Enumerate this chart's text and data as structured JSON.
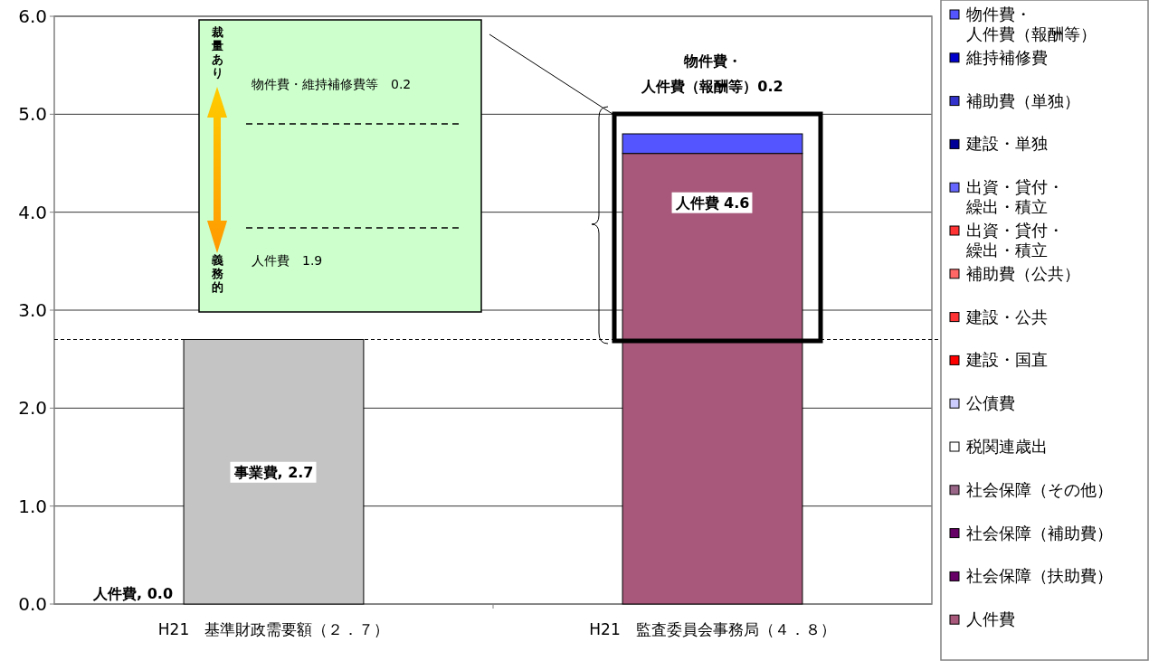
{
  "chart_data": {
    "type": "bar",
    "stacked": true,
    "categories": [
      "H21　基準財政需要額（２．７）",
      "H21　監査委員会事務局（４．８）"
    ],
    "series": [
      {
        "name": "人件費",
        "color": "#a8587a",
        "values": [
          0.0,
          4.6
        ],
        "value_labels": [
          null,
          "人件費 4.6"
        ]
      },
      {
        "color": "#c4c4c4",
        "values": [
          2.7,
          null
        ],
        "value_labels": [
          "事業費, 2.7",
          null
        ]
      },
      {
        "name": "社会保障（扶助費）",
        "color": "#660066",
        "values": [
          null,
          null
        ]
      },
      {
        "name": "社会保障（補助費）",
        "color": "#660066",
        "values": [
          null,
          null
        ]
      },
      {
        "name": "社会保障（その他）",
        "color": "#996688",
        "values": [
          null,
          null
        ]
      },
      {
        "name": "税関連歳出",
        "color": "#ffffff",
        "values": [
          null,
          null
        ]
      },
      {
        "name": "公債費",
        "color": "#ccccff",
        "values": [
          null,
          null
        ]
      },
      {
        "name": "建設・国直",
        "color": "#ff0000",
        "values": [
          null,
          null
        ]
      },
      {
        "name": "建設・公共",
        "color": "#ff3333",
        "values": [
          null,
          null
        ]
      },
      {
        "name": "補助費（公共）",
        "color": "#ff6666",
        "values": [
          null,
          null
        ]
      },
      {
        "name": "出資・貸付・繰出・積立",
        "color": "#ff3333",
        "values": [
          null,
          null
        ]
      },
      {
        "name": "出資・貸付・繰出・積立",
        "color": "#6666ff",
        "values": [
          null,
          null
        ]
      },
      {
        "name": "建設・単独",
        "color": "#000099",
        "values": [
          null,
          null
        ]
      },
      {
        "name": "補助費（単独）",
        "color": "#3333cc",
        "values": [
          null,
          null
        ]
      },
      {
        "name": "維持補修費",
        "color": "#0000cc",
        "values": [
          null,
          null
        ]
      },
      {
        "name": "物件費・人件費（報酬等）",
        "color": "#5555ff",
        "values": [
          null,
          0.2
        ],
        "value_labels": [
          null,
          "物件費・人件費（報酬等）0.2"
        ]
      }
    ],
    "ylim": [
      0,
      6
    ],
    "yticks": [
      {
        "value": 0,
        "label": "0.0"
      },
      {
        "value": 1,
        "label": "1.0"
      },
      {
        "value": 2,
        "label": "2.0"
      },
      {
        "value": 3,
        "label": "3.0"
      },
      {
        "value": 4,
        "label": "4.0"
      },
      {
        "value": 5,
        "label": "5.0"
      },
      {
        "value": 6,
        "label": "6.0"
      }
    ],
    "grid": "y",
    "legend": "right",
    "ref_lines": [
      {
        "axis": "y",
        "value": 2.7,
        "line_style": "dashed",
        "color": "#000000"
      }
    ],
    "annotations": [
      "裁量あり",
      "義務的",
      "物件費・維持補修費等　0.2",
      "人件費　1.9",
      "人件費, 0.0"
    ]
  }
}
